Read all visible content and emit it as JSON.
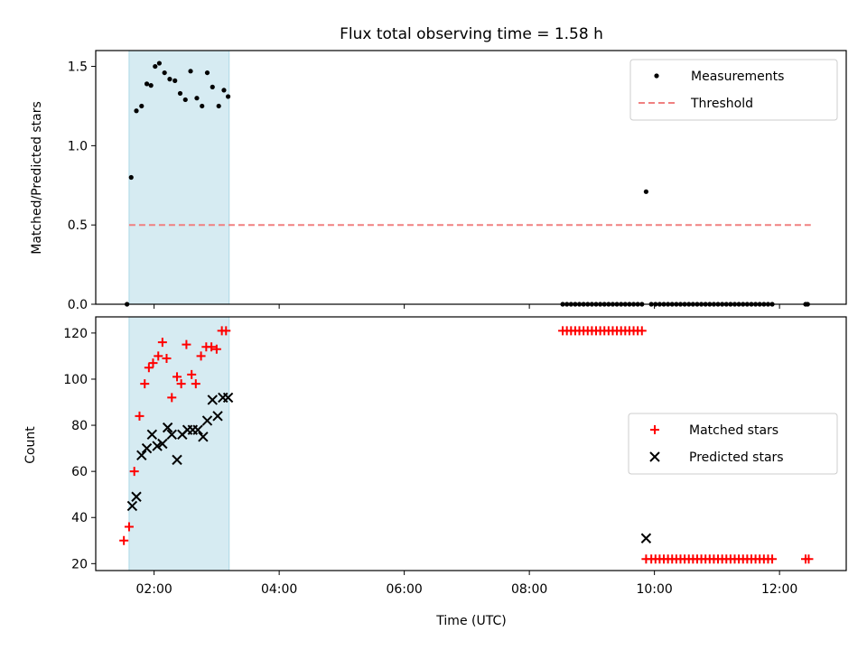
{
  "title": "Flux total observing time = 1.58 h",
  "xlabel": "Time (UTC)",
  "x_ticks": [
    "02:00",
    "04:00",
    "06:00",
    "08:00",
    "10:00",
    "12:00"
  ],
  "colors": {
    "shade": "#add8e6",
    "threshold": "#f08080",
    "matched": "#ff0000",
    "predicted": "#000000",
    "measurement": "#000000"
  },
  "chart_data": [
    {
      "type": "scatter",
      "title": "Flux total observing time = 1.58 h",
      "xlabel": "",
      "ylabel": "Matched/Predicted stars",
      "xlim": [
        "01:04",
        "13:04"
      ],
      "ylim": [
        0,
        1.6
      ],
      "y_ticks": [
        "0.0",
        "0.5",
        "1.0",
        "1.5"
      ],
      "legend_position": "top-right",
      "shaded_interval": [
        "01:36",
        "03:12"
      ],
      "threshold": {
        "name": "Threshold",
        "value": 0.5,
        "x_range": [
          "01:36",
          "12:30"
        ]
      },
      "series": [
        {
          "name": "Measurements",
          "x": [
            "01:34",
            "01:38",
            "01:43",
            "01:48",
            "01:53",
            "01:57",
            "02:01",
            "02:05",
            "02:10",
            "02:15",
            "02:20",
            "02:25",
            "02:30",
            "02:35",
            "02:41",
            "02:46",
            "02:51",
            "02:56",
            "03:02",
            "03:07",
            "03:11",
            "08:32",
            "08:36",
            "08:40",
            "08:44",
            "08:48",
            "08:52",
            "08:56",
            "09:00",
            "09:04",
            "09:08",
            "09:12",
            "09:16",
            "09:20",
            "09:24",
            "09:28",
            "09:32",
            "09:36",
            "09:40",
            "09:44",
            "09:48",
            "09:52",
            "09:57",
            "10:01",
            "10:05",
            "10:09",
            "10:13",
            "10:17",
            "10:21",
            "10:25",
            "10:29",
            "10:33",
            "10:37",
            "10:41",
            "10:45",
            "10:49",
            "10:53",
            "10:57",
            "11:01",
            "11:05",
            "11:09",
            "11:13",
            "11:17",
            "11:21",
            "11:25",
            "11:29",
            "11:33",
            "11:37",
            "11:41",
            "11:45",
            "11:49",
            "11:53",
            "12:25",
            "12:27"
          ],
          "y": [
            0,
            0.8,
            1.22,
            1.25,
            1.39,
            1.38,
            1.5,
            1.52,
            1.46,
            1.42,
            1.41,
            1.33,
            1.29,
            1.47,
            1.3,
            1.25,
            1.46,
            1.37,
            1.25,
            1.35,
            1.31,
            0,
            0,
            0,
            0,
            0,
            0,
            0,
            0,
            0,
            0,
            0,
            0,
            0,
            0,
            0,
            0,
            0,
            0,
            0,
            0,
            0.71,
            0,
            0,
            0,
            0,
            0,
            0,
            0,
            0,
            0,
            0,
            0,
            0,
            0,
            0,
            0,
            0,
            0,
            0,
            0,
            0,
            0,
            0,
            0,
            0,
            0,
            0,
            0,
            0,
            0,
            0,
            0,
            0
          ]
        }
      ]
    },
    {
      "type": "scatter",
      "xlabel": "Time (UTC)",
      "ylabel": "Count",
      "xlim": [
        "01:04",
        "13:04"
      ],
      "ylim": [
        17,
        127
      ],
      "y_ticks": [
        "20",
        "40",
        "60",
        "80",
        "100",
        "120"
      ],
      "legend_position": "center-right",
      "shaded_interval": [
        "01:36",
        "03:12"
      ],
      "series": [
        {
          "name": "Matched stars",
          "x": [
            "01:31",
            "01:36",
            "01:41",
            "01:46",
            "01:51",
            "01:55",
            "01:59",
            "02:04",
            "02:08",
            "02:12",
            "02:17",
            "02:22",
            "02:26",
            "02:31",
            "02:36",
            "02:40",
            "02:45",
            "02:50",
            "02:55",
            "03:00",
            "03:05",
            "03:09",
            "08:32",
            "08:36",
            "08:40",
            "08:44",
            "08:48",
            "08:52",
            "08:56",
            "09:00",
            "09:04",
            "09:08",
            "09:12",
            "09:16",
            "09:20",
            "09:24",
            "09:28",
            "09:32",
            "09:36",
            "09:40",
            "09:44",
            "09:48",
            "09:52",
            "09:57",
            "10:01",
            "10:05",
            "10:09",
            "10:13",
            "10:17",
            "10:21",
            "10:25",
            "10:29",
            "10:33",
            "10:37",
            "10:41",
            "10:45",
            "10:49",
            "10:53",
            "10:57",
            "11:01",
            "11:05",
            "11:09",
            "11:13",
            "11:17",
            "11:21",
            "11:25",
            "11:29",
            "11:33",
            "11:37",
            "11:41",
            "11:45",
            "11:49",
            "11:53",
            "12:25",
            "12:28"
          ],
          "y": [
            30,
            36,
            60,
            84,
            98,
            105,
            107,
            110,
            116,
            109,
            92,
            101,
            98,
            115,
            102,
            98,
            110,
            114,
            114,
            113,
            121,
            121,
            121,
            121,
            121,
            121,
            121,
            121,
            121,
            121,
            121,
            121,
            121,
            121,
            121,
            121,
            121,
            121,
            121,
            121,
            121,
            121,
            22,
            22,
            22,
            22,
            22,
            22,
            22,
            22,
            22,
            22,
            22,
            22,
            22,
            22,
            22,
            22,
            22,
            22,
            22,
            22,
            22,
            22,
            22,
            22,
            22,
            22,
            22,
            22,
            22,
            22,
            22,
            22,
            22
          ]
        },
        {
          "name": "Predicted stars",
          "x": [
            "01:39",
            "01:43",
            "01:48",
            "01:53",
            "01:58",
            "02:03",
            "02:08",
            "02:13",
            "02:17",
            "02:22",
            "02:27",
            "02:32",
            "02:37",
            "02:42",
            "02:47",
            "02:51",
            "02:56",
            "03:01",
            "03:06",
            "03:11",
            "09:52"
          ],
          "y": [
            45,
            49,
            67,
            70,
            76,
            71,
            72,
            79,
            76,
            65,
            76,
            78,
            78,
            78,
            75,
            82,
            91,
            84,
            92,
            92,
            31
          ]
        }
      ]
    }
  ]
}
